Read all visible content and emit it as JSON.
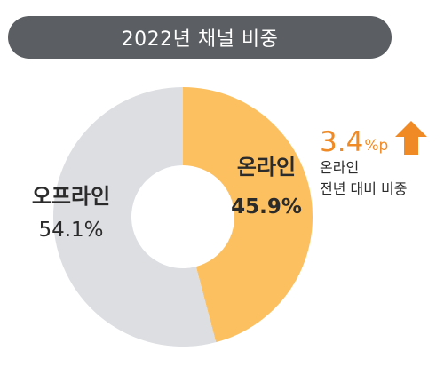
{
  "title": "2022년 채널 비중",
  "colors": {
    "online": "#fcc060",
    "offline": "#dcdee2",
    "accent": "#f08a24",
    "title_bg": "#5b5f63"
  },
  "chart_data": {
    "type": "pie",
    "donut": true,
    "title": "2022년 채널 비중",
    "slices": [
      {
        "label": "온라인",
        "value": 45.9,
        "display": "45.9%",
        "color": "#fcc060"
      },
      {
        "label": "오프라인",
        "value": 54.1,
        "display": "54.1%",
        "color": "#dcdee2"
      }
    ],
    "annotation": {
      "value": "3.4",
      "unit": "%p",
      "direction": "up",
      "line1": "온라인",
      "line2": "전년 대비 비중"
    }
  }
}
